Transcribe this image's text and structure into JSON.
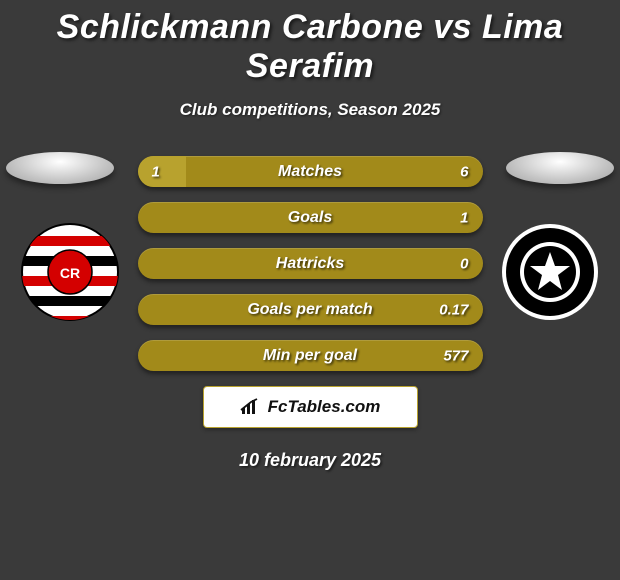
{
  "title": "Schlickmann Carbone vs Lima Serafim",
  "subtitle": "Club competitions, Season 2025",
  "date": "10 february 2025",
  "brand": "FcTables.com",
  "colors": {
    "background": "#3a3a3a",
    "bar_dark": "#a28a1a",
    "bar_light": "#b8a22e",
    "text": "#ffffff",
    "brand_box_bg": "#ffffff",
    "brand_box_border": "#b8a22e"
  },
  "bars": [
    {
      "label": "Matches",
      "left": "1",
      "right": "6",
      "left_pct": 14,
      "right_pct": 0
    },
    {
      "label": "Goals",
      "left": "",
      "right": "1",
      "left_pct": 0,
      "right_pct": 0
    },
    {
      "label": "Hattricks",
      "left": "",
      "right": "0",
      "left_pct": 0,
      "right_pct": 0
    },
    {
      "label": "Goals per match",
      "left": "",
      "right": "0.17",
      "left_pct": 0,
      "right_pct": 0
    },
    {
      "label": "Min per goal",
      "left": "",
      "right": "577",
      "left_pct": 0,
      "right_pct": 0
    }
  ],
  "crest_left": {
    "bg": "#ffffff",
    "stripes": "#d40000",
    "band": "#000000"
  },
  "crest_right": {
    "bg": "#000000",
    "star": "#ffffff"
  }
}
